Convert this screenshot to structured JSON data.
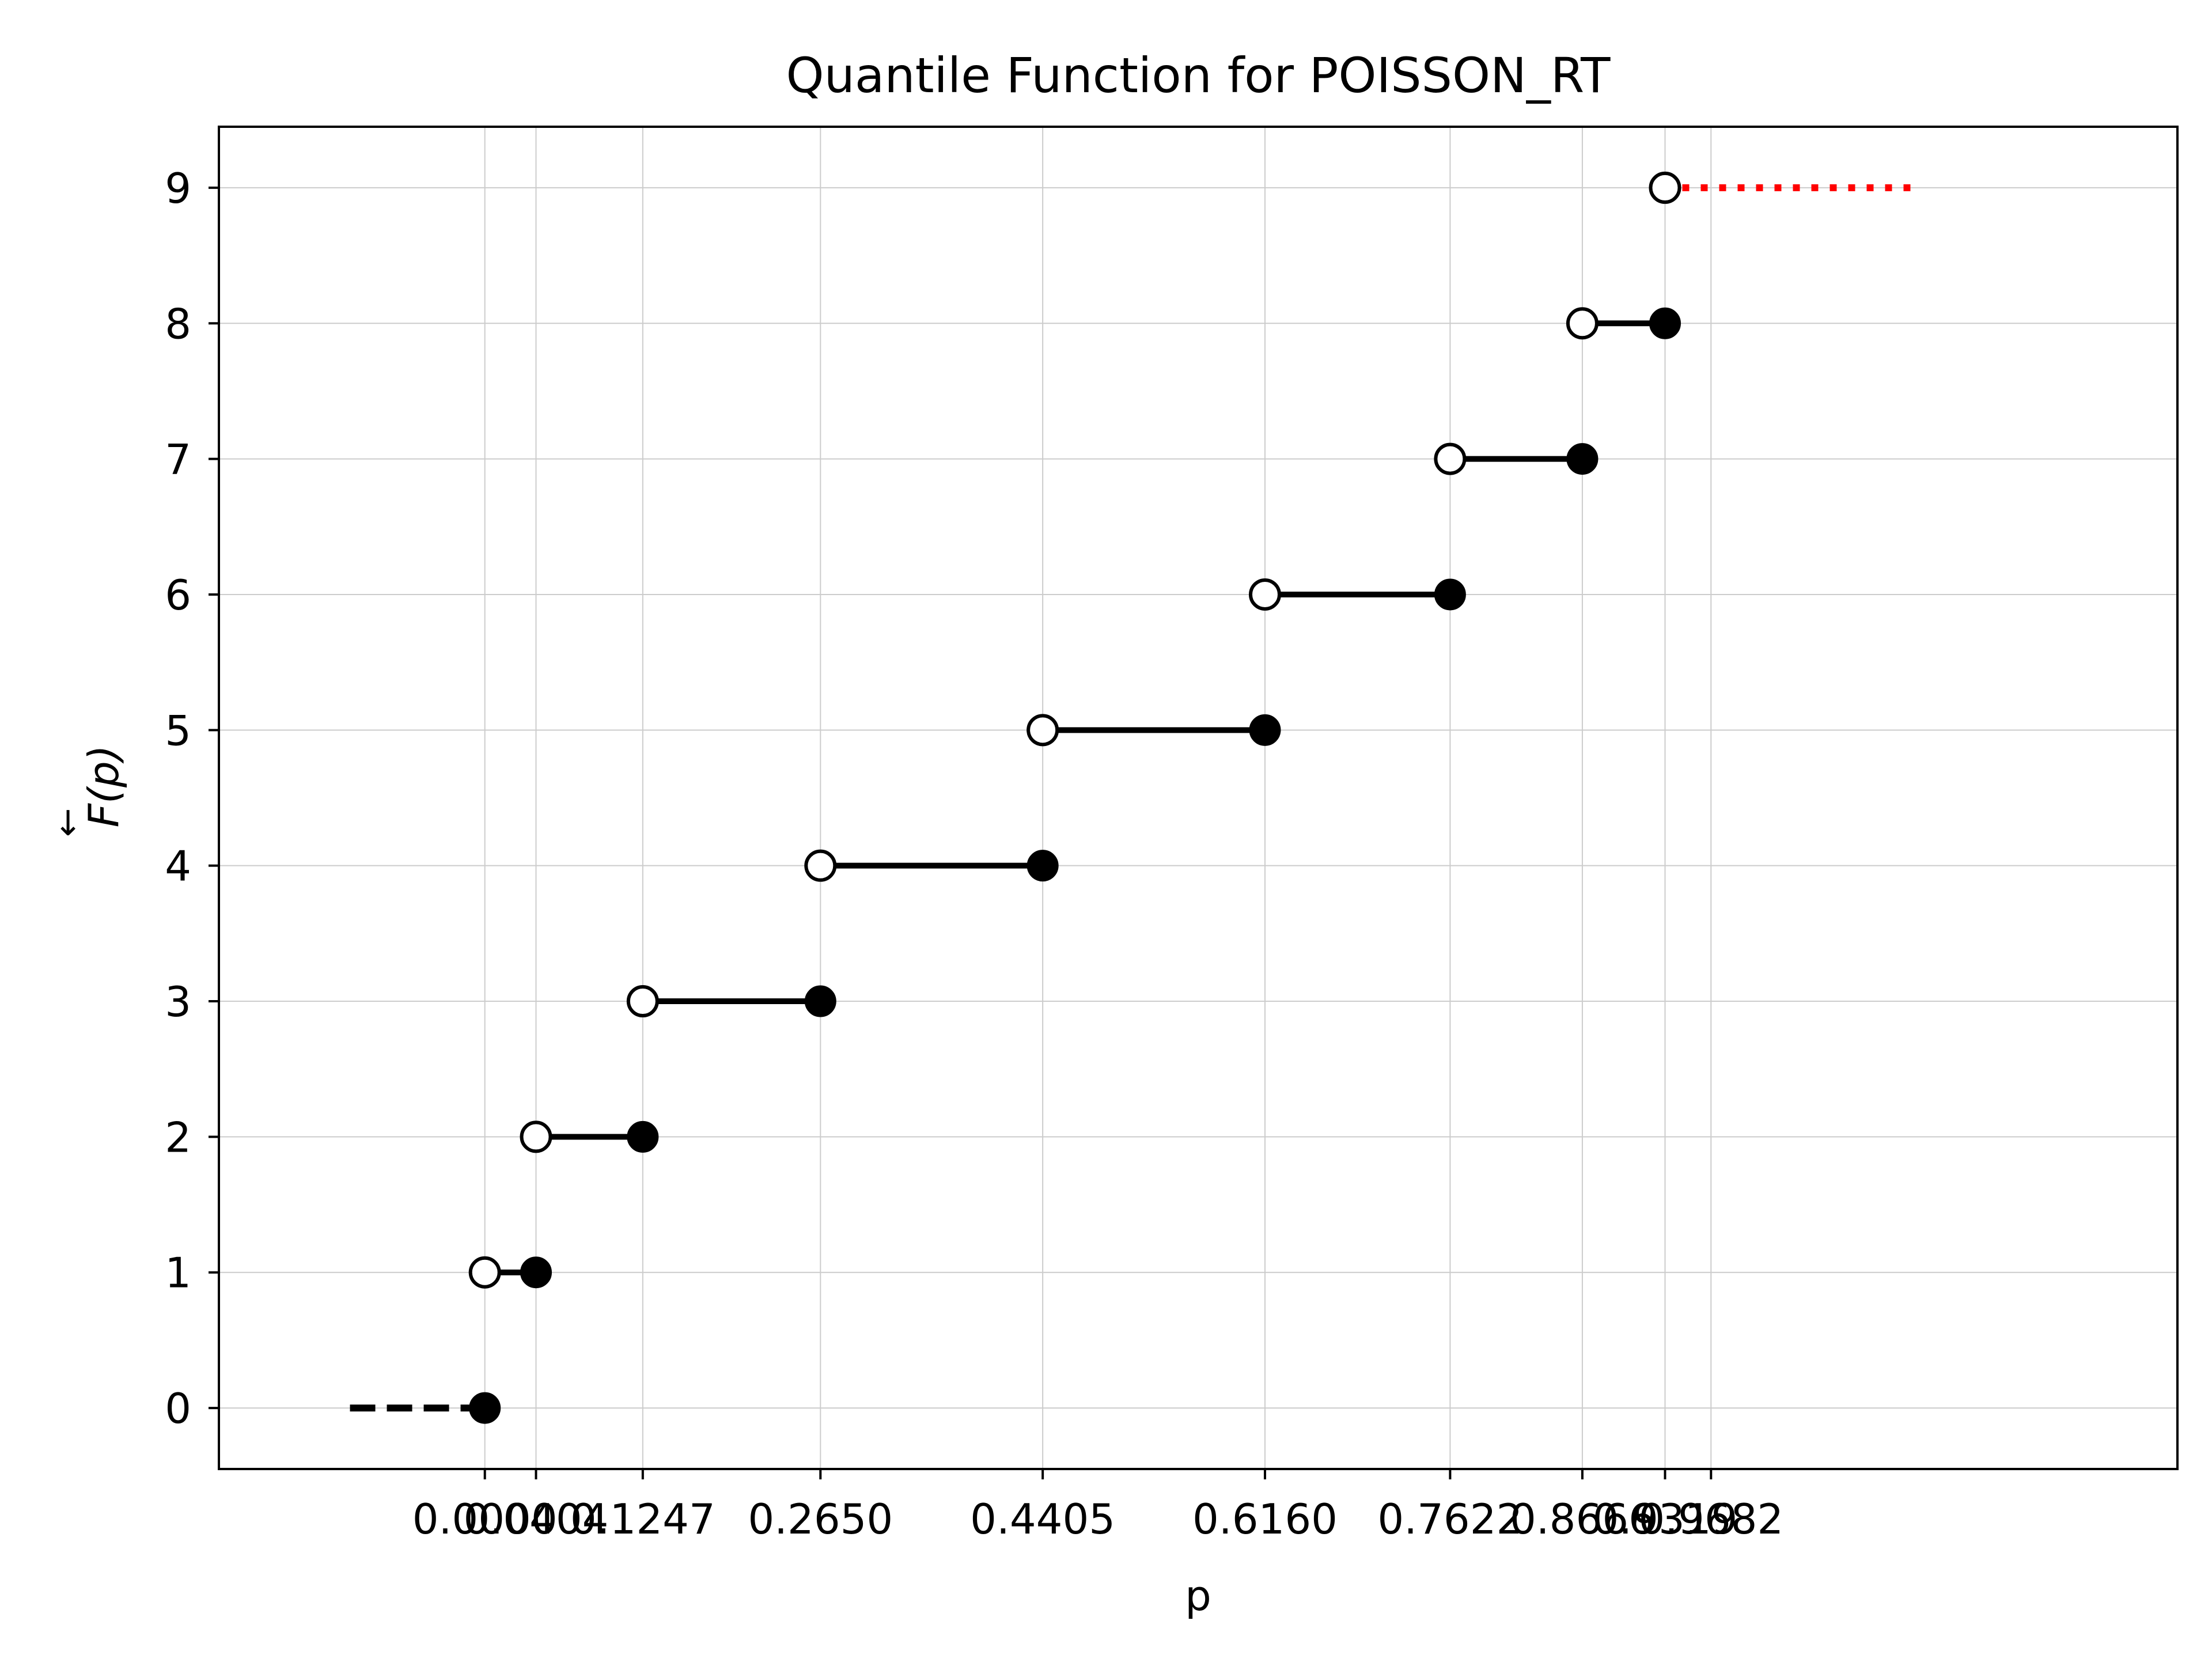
{
  "chart_data": {
    "type": "line",
    "title": "Quantile Function for POISSON_RT",
    "xlabel": "p",
    "ylabel_glyph": "F",
    "ylabel_arrow": "←",
    "ylabel_rest": "(p)",
    "xlim": [
      -0.21,
      1.3365
    ],
    "ylim": [
      -0.45,
      9.45
    ],
    "grid": true,
    "x_ticks": [
      0.0,
      0.0404,
      0.1247,
      0.265,
      0.4405,
      0.616,
      0.7622,
      0.8666,
      0.9319,
      0.9682
    ],
    "x_tick_labels": [
      "0.0000",
      "0.0404",
      "0.1247",
      "0.2650",
      "0.4405",
      "0.6160",
      "0.7622",
      "0.8666",
      "0.9319",
      "0.9682"
    ],
    "y_ticks": [
      0,
      1,
      2,
      3,
      4,
      5,
      6,
      7,
      8,
      9
    ],
    "y_tick_labels": [
      "0",
      "1",
      "2",
      "3",
      "4",
      "5",
      "6",
      "7",
      "8",
      "9"
    ],
    "lower_tail": {
      "x": [
        -0.1065,
        0.0
      ],
      "y": 0,
      "style": "dashed",
      "color": "#000000"
    },
    "upper_tail": {
      "x": [
        0.9319,
        1.1345
      ],
      "y": 9,
      "style": "dotted",
      "color": "#ff0000"
    },
    "steps": [
      {
        "y": 0,
        "x_open": null,
        "x_closed": 0.0
      },
      {
        "y": 1,
        "x_open": 0.0,
        "x_closed": 0.0404
      },
      {
        "y": 2,
        "x_open": 0.0404,
        "x_closed": 0.1247
      },
      {
        "y": 3,
        "x_open": 0.1247,
        "x_closed": 0.265
      },
      {
        "y": 4,
        "x_open": 0.265,
        "x_closed": 0.4405
      },
      {
        "y": 5,
        "x_open": 0.4405,
        "x_closed": 0.616
      },
      {
        "y": 6,
        "x_open": 0.616,
        "x_closed": 0.7622
      },
      {
        "y": 7,
        "x_open": 0.7622,
        "x_closed": 0.8666
      },
      {
        "y": 8,
        "x_open": 0.8666,
        "x_closed": 0.9319
      },
      {
        "y": 9,
        "x_open": 0.9319,
        "x_closed": null
      }
    ],
    "colors": {
      "step_line": "#000000",
      "open_fill": "#ffffff",
      "closed_fill": "#000000",
      "grid": "#cccccc"
    }
  }
}
